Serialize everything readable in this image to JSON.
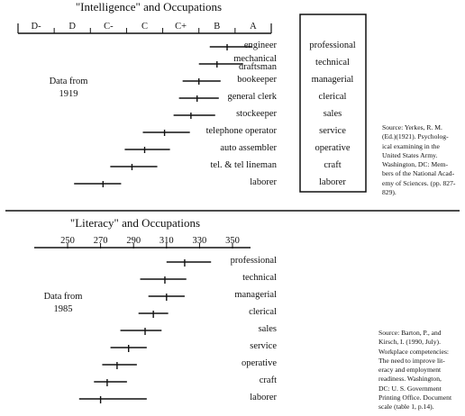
{
  "chart_data": [
    {
      "type": "range",
      "title": "\"Intelligence\" and Occupations",
      "xlabel": "",
      "ylabel": "",
      "x_ticks": [
        "D-",
        "D",
        "C-",
        "C",
        "C+",
        "B",
        "A"
      ],
      "xlim": [
        0,
        7
      ],
      "note_lines": [
        "Data from",
        "1919"
      ],
      "series": [
        {
          "name": "",
          "points": [
            {
              "label": "engineer",
              "low": 5.3,
              "mid": 5.78,
              "high": 6.45
            },
            {
              "label": "mechanical draftsman",
              "low": 5.0,
              "mid": 5.5,
              "high": 6.2
            },
            {
              "label": "bookeeper",
              "low": 4.55,
              "mid": 5.0,
              "high": 5.6
            },
            {
              "label": "general clerk",
              "low": 4.45,
              "mid": 4.95,
              "high": 5.55
            },
            {
              "label": "stockeeper",
              "low": 4.3,
              "mid": 4.78,
              "high": 5.45
            },
            {
              "label": "telephone operator",
              "low": 3.45,
              "mid": 4.05,
              "high": 4.75
            },
            {
              "label": "auto assembler",
              "low": 2.95,
              "mid": 3.5,
              "high": 4.2
            },
            {
              "label": "tel. & tel lineman",
              "low": 2.55,
              "mid": 3.15,
              "high": 3.85
            },
            {
              "label": "laborer",
              "low": 1.55,
              "mid": 2.35,
              "high": 2.85
            }
          ]
        }
      ],
      "categories_right": [
        "professional",
        "technical",
        "managerial",
        "clerical",
        "sales",
        "service",
        "operative",
        "craft",
        "laborer"
      ]
    },
    {
      "type": "range",
      "title": "\"Literacy\" and Occupations",
      "xlabel": "",
      "ylabel": "",
      "x_ticks": [
        250,
        270,
        290,
        310,
        330,
        350
      ],
      "xlim": [
        240,
        360
      ],
      "note_lines": [
        "Data from",
        "1985"
      ],
      "series": [
        {
          "name": "",
          "points": [
            {
              "label": "professional",
              "low": 310,
              "mid": 321,
              "high": 337
            },
            {
              "label": "technical",
              "low": 294,
              "mid": 309,
              "high": 322
            },
            {
              "label": "managerial",
              "low": 299,
              "mid": 310,
              "high": 321
            },
            {
              "label": "clerical",
              "low": 293,
              "mid": 302,
              "high": 311
            },
            {
              "label": "sales",
              "low": 282,
              "mid": 297,
              "high": 307
            },
            {
              "label": "service",
              "low": 276,
              "mid": 287,
              "high": 298
            },
            {
              "label": "operative",
              "low": 271,
              "mid": 280,
              "high": 292
            },
            {
              "label": "craft",
              "low": 266,
              "mid": 274,
              "high": 286
            },
            {
              "label": "laborer",
              "low": 257,
              "mid": 270,
              "high": 298
            }
          ]
        }
      ]
    }
  ],
  "sources": [
    {
      "lines": [
        "Source:  Yerkes, R. M.",
        "(Ed.)(1921). Psycholog-",
        "ical examining in the",
        "United  States  Army.",
        "Washington, DC: Mem-",
        "bers of the National Acad-",
        "emy of Sciences. (pp. 827-",
        "829)."
      ]
    },
    {
      "lines": [
        "Source:  Barton, P.,  and",
        "Kirsch, I.  (1990, July).",
        "Workplace competencies:",
        "The need to improve lit-",
        "eracy and employment",
        "readiness.  Washington,",
        "DC: U. S. Government",
        "Printing Office. Document",
        "scale (table 1, p.14)."
      ]
    }
  ],
  "colors": {
    "ink": "#111111",
    "paper": "#ffffff"
  }
}
